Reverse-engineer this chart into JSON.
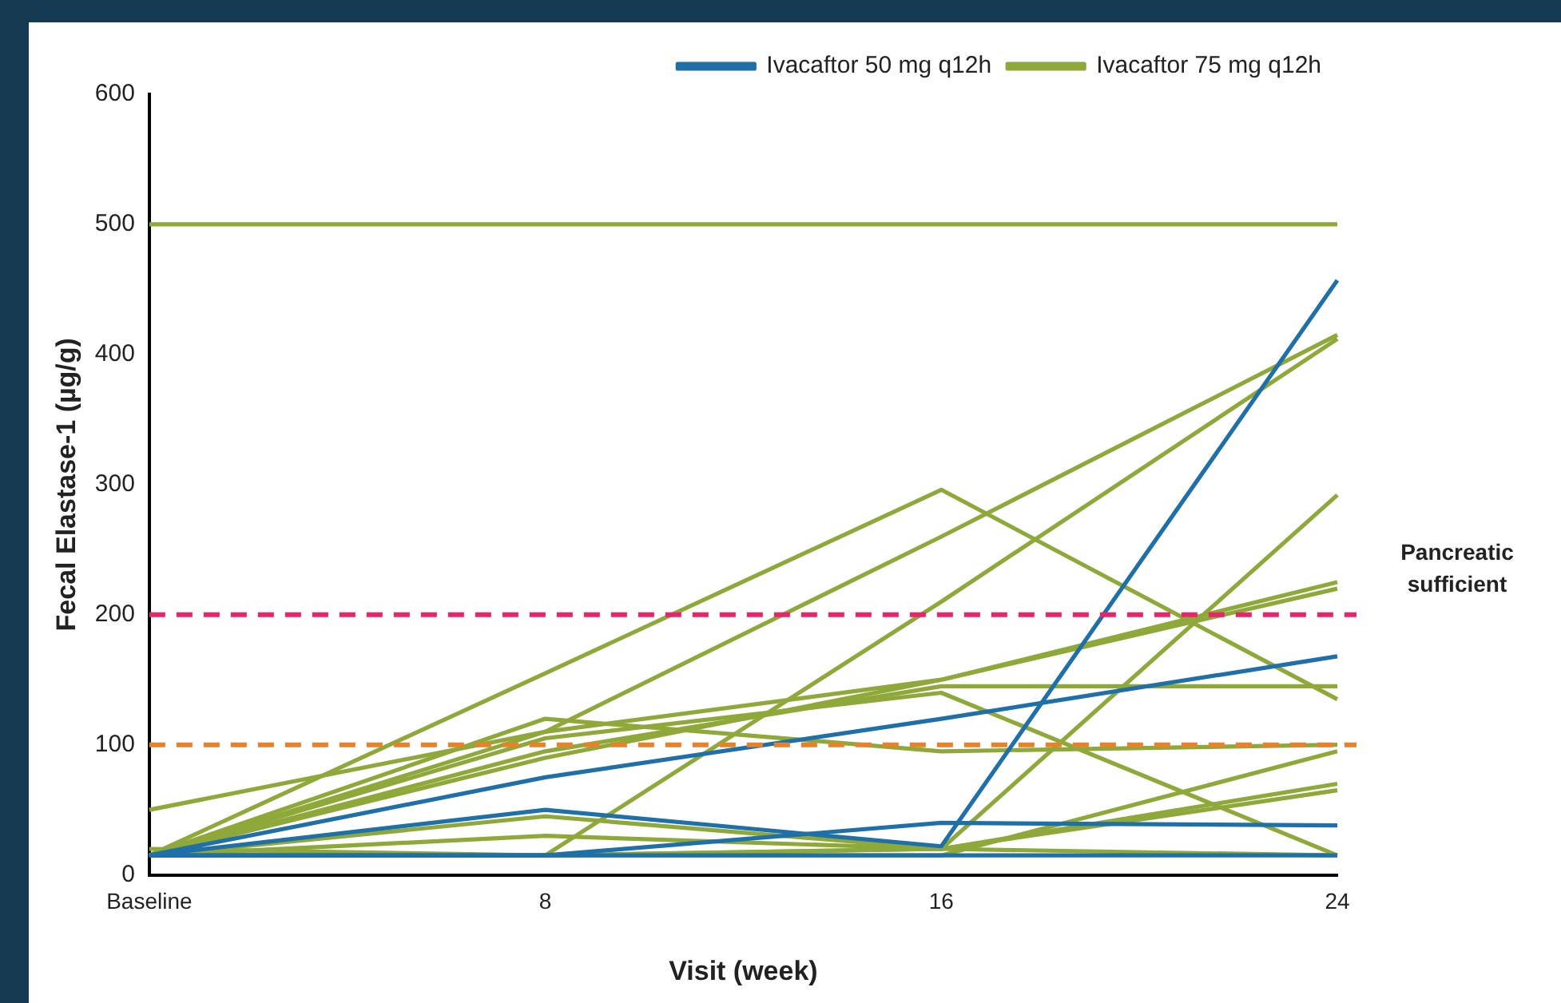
{
  "chart_data": {
    "type": "line",
    "xlabel": "Visit (week)",
    "ylabel": "Fecal Elastase-1 (µg/g)",
    "categories": [
      "Baseline",
      "8",
      "16",
      "24"
    ],
    "ylim": [
      0,
      600
    ],
    "yticks": [
      0,
      100,
      200,
      300,
      400,
      500,
      600
    ],
    "grid": false,
    "legend": "top right",
    "marker": "none",
    "line_style": "solid",
    "ref_lines": [
      {
        "axis": "y",
        "value": 200,
        "label": "Pancreatic sufficient",
        "color": "#e8246a",
        "line_style": "dashed"
      },
      {
        "axis": "y",
        "value": 100,
        "color": "#e8822a",
        "line_style": "dashed"
      }
    ],
    "series": [
      {
        "name": "Ivacaftor 50 mg q12h",
        "color": "#1f6fa8",
        "values": [
          15,
          75,
          120,
          168
        ]
      },
      {
        "color": "#1f6fa8",
        "values": [
          15,
          50,
          22,
          457
        ]
      },
      {
        "color": "#1f6fa8",
        "values": [
          15,
          15,
          40,
          38
        ]
      },
      {
        "color": "#1f6fa8",
        "values": [
          15,
          15,
          15,
          15
        ]
      },
      {
        "name": "Ivacaftor 75 mg q12h",
        "color": "#8fa83a",
        "values": [
          500,
          500,
          500,
          500
        ]
      },
      {
        "color": "#8fa83a",
        "values": [
          15,
          155,
          296,
          135
        ]
      },
      {
        "color": "#8fa83a",
        "values": [
          15,
          110,
          260,
          415
        ]
      },
      {
        "color": "#8fa83a",
        "values": [
          20,
          15,
          210,
          412
        ]
      },
      {
        "color": "#8fa83a",
        "values": [
          15,
          15,
          20,
          292
        ]
      },
      {
        "color": "#8fa83a",
        "values": [
          50,
          110,
          150,
          225
        ]
      },
      {
        "color": "#8fa83a",
        "values": [
          15,
          90,
          150,
          220
        ]
      },
      {
        "color": "#8fa83a",
        "values": [
          15,
          120,
          95,
          100
        ]
      },
      {
        "color": "#8fa83a",
        "values": [
          15,
          95,
          145,
          145
        ]
      },
      {
        "color": "#8fa83a",
        "values": [
          15,
          30,
          20,
          15
        ]
      },
      {
        "color": "#8fa83a",
        "values": [
          15,
          45,
          20,
          70
        ]
      },
      {
        "color": "#8fa83a",
        "values": [
          15,
          15,
          15,
          95
        ]
      },
      {
        "color": "#8fa83a",
        "values": [
          15,
          15,
          20,
          65
        ]
      },
      {
        "color": "#8fa83a",
        "values": [
          15,
          105,
          140,
          15
        ]
      }
    ]
  }
}
